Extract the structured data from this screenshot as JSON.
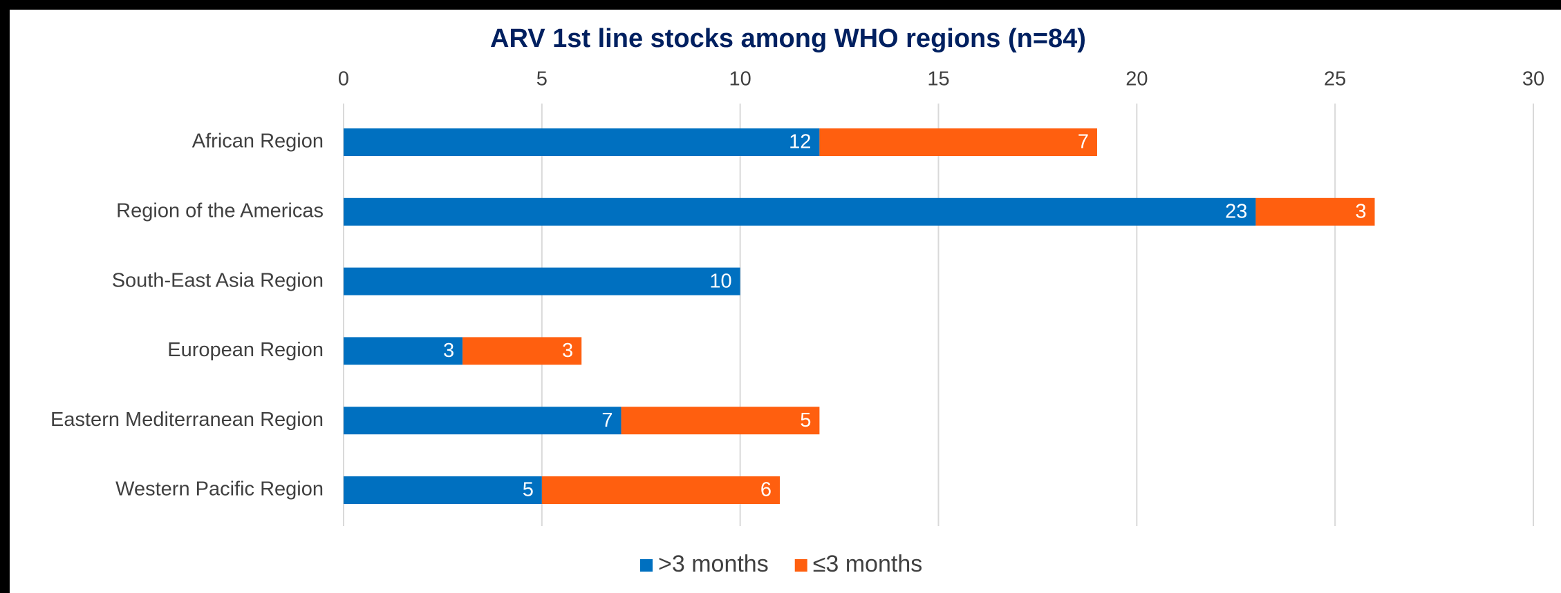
{
  "chart_data": {
    "type": "stacked_bar_horizontal",
    "title": "ARV 1st line stocks among WHO regions (n=84)",
    "categories": [
      "African Region",
      "Region of the Americas",
      "South-East Asia Region",
      "European Region",
      "Eastern Mediterranean Region",
      "Western Pacific Region"
    ],
    "series": [
      {
        "name": ">3 months",
        "color": "#0070c0",
        "values": [
          12,
          23,
          10,
          3,
          7,
          5
        ]
      },
      {
        "name": "≤3 months",
        "color": "#ff5f0f",
        "values": [
          7,
          3,
          null,
          3,
          5,
          6
        ]
      }
    ],
    "xlim": [
      0,
      30
    ],
    "xticks": [
      0,
      5,
      10,
      15,
      20,
      25,
      30
    ],
    "grid": true,
    "legend": "bottom"
  }
}
